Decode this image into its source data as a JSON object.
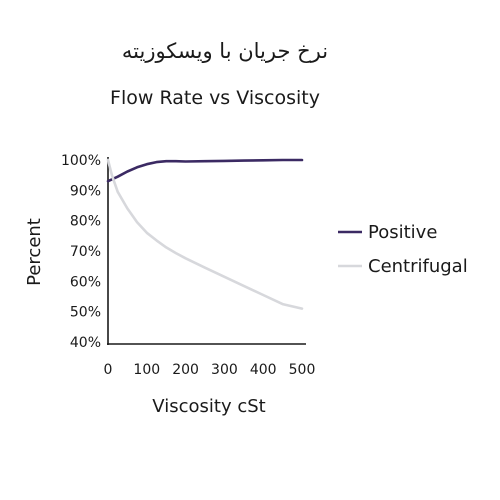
{
  "chart_data": {
    "type": "line",
    "title_fa": "نرخ جریان با ویسکوزیته",
    "title": "Flow Rate vs Viscosity",
    "xlabel": "Viscosity cSt",
    "ylabel": "Percent",
    "xlim": [
      0,
      500
    ],
    "ylim": [
      40,
      100
    ],
    "x_ticks": [
      0,
      100,
      200,
      300,
      400,
      500
    ],
    "y_ticks": [
      "100%",
      "90%",
      "80%",
      "70%",
      "60%",
      "50%",
      "40%"
    ],
    "y_tick_values": [
      100,
      90,
      80,
      70,
      60,
      50,
      40
    ],
    "grid": false,
    "legend_position": "right",
    "series": [
      {
        "name": "Positive",
        "color": "#3b2a63",
        "x": [
          0,
          25,
          50,
          75,
          100,
          125,
          150,
          175,
          200,
          250,
          300,
          350,
          400,
          450,
          500
        ],
        "y": [
          93,
          94.5,
          96.2,
          97.6,
          98.6,
          99.3,
          99.6,
          99.6,
          99.5,
          99.6,
          99.7,
          99.8,
          99.9,
          100,
          100
        ]
      },
      {
        "name": "Centrifugal",
        "color": "#d7d8dc",
        "x": [
          0,
          10,
          25,
          50,
          75,
          100,
          125,
          150,
          175,
          200,
          250,
          300,
          350,
          400,
          450,
          500
        ],
        "y": [
          100,
          95,
          89.5,
          84,
          79.5,
          76,
          73.5,
          71.2,
          69.3,
          67.6,
          64.5,
          61.5,
          58.5,
          55.5,
          52.5,
          51
        ]
      }
    ]
  }
}
